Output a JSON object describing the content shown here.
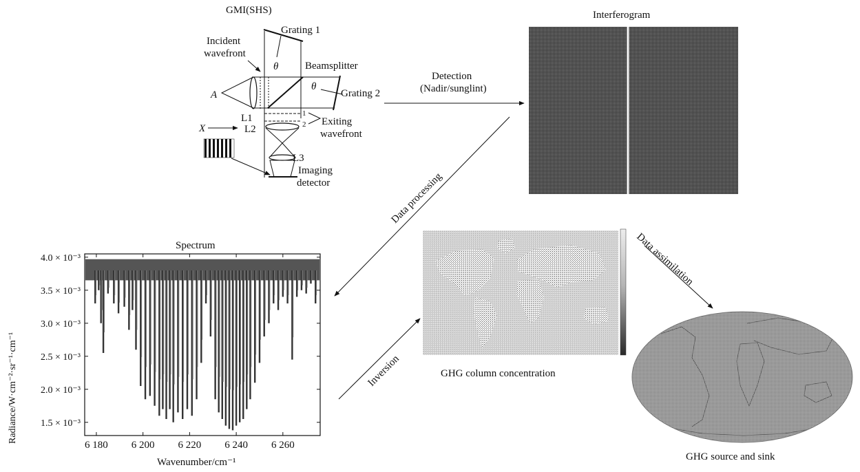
{
  "gmi": {
    "title": "GMI(SHS)",
    "labels": {
      "grating1": "Grating 1",
      "grating2": "Grating 2",
      "incident_line1": "Incident",
      "incident_line2": "wavefront",
      "beamsplitter": "Beamsplitter",
      "theta": "θ",
      "a": "A",
      "l1": "L1",
      "l2": "L2",
      "l3": "L3",
      "x": "X",
      "mark1": "1",
      "mark2": "2",
      "exiting_line1": "Exiting",
      "exiting_line2": "wavefront",
      "imaging_line1": "Imaging",
      "imaging_line2": "detector"
    }
  },
  "interferogram": {
    "title": "Interferogram"
  },
  "arrows": {
    "detection_line1": "Detection",
    "detection_line2": "(Nadir/sunglint)",
    "data_processing": "Data processing",
    "inversion": "Inversion",
    "data_assimilation": "Data assimilation"
  },
  "ghg_column": {
    "caption": "GHG column concentration"
  },
  "ghg_source": {
    "caption": "GHG source and sink"
  },
  "chart_data": {
    "type": "line",
    "title": "Spectrum",
    "xlabel": "Wavenumber/cm⁻¹",
    "ylabel": "Radiance/W·cm⁻²·sr⁻¹·cm⁻¹",
    "xlim": [
      6175,
      6276
    ],
    "ylim": [
      1.3,
      4.05
    ],
    "y_exponent_label": "×10⁻³",
    "x_ticks": [
      6180,
      6200,
      6220,
      6240,
      6260
    ],
    "x_tick_labels": [
      "6 180",
      "6 200",
      "6 220",
      "6 240",
      "6 260"
    ],
    "y_ticks": [
      1.5,
      2.0,
      2.5,
      3.0,
      3.5,
      4.0
    ],
    "y_tick_labels": [
      "1.5 × 10⁻³",
      "2.0 × 10⁻³",
      "2.5 × 10⁻³",
      "3.0 × 10⁻³",
      "3.5 × 10⁻³",
      "4.0 × 10⁻³"
    ],
    "baseline": 3.8,
    "absorption_lines": [
      {
        "x": 6179.5,
        "y": 3.3
      },
      {
        "x": 6181.0,
        "y": 3.5
      },
      {
        "x": 6182.0,
        "y": 3.0
      },
      {
        "x": 6183.0,
        "y": 2.55
      },
      {
        "x": 6185.0,
        "y": 3.45
      },
      {
        "x": 6187.5,
        "y": 3.3
      },
      {
        "x": 6189.5,
        "y": 3.15
      },
      {
        "x": 6192.0,
        "y": 3.25
      },
      {
        "x": 6194.0,
        "y": 2.9
      },
      {
        "x": 6195.5,
        "y": 3.2
      },
      {
        "x": 6197.0,
        "y": 2.6
      },
      {
        "x": 6199.0,
        "y": 2.05
      },
      {
        "x": 6201.0,
        "y": 1.85
      },
      {
        "x": 6203.0,
        "y": 1.9
      },
      {
        "x": 6205.0,
        "y": 1.75
      },
      {
        "x": 6207.0,
        "y": 1.6
      },
      {
        "x": 6208.5,
        "y": 1.7
      },
      {
        "x": 6210.0,
        "y": 1.55
      },
      {
        "x": 6211.5,
        "y": 1.7
      },
      {
        "x": 6213.0,
        "y": 1.5
      },
      {
        "x": 6215.0,
        "y": 1.65
      },
      {
        "x": 6217.0,
        "y": 1.55
      },
      {
        "x": 6219.0,
        "y": 1.7
      },
      {
        "x": 6221.0,
        "y": 1.6
      },
      {
        "x": 6223.0,
        "y": 1.85
      },
      {
        "x": 6225.0,
        "y": 2.4
      },
      {
        "x": 6227.0,
        "y": 3.3
      },
      {
        "x": 6229.0,
        "y": 2.8
      },
      {
        "x": 6231.0,
        "y": 1.85
      },
      {
        "x": 6232.5,
        "y": 1.65
      },
      {
        "x": 6234.0,
        "y": 1.55
      },
      {
        "x": 6235.5,
        "y": 1.45
      },
      {
        "x": 6237.0,
        "y": 1.4
      },
      {
        "x": 6238.5,
        "y": 1.38
      },
      {
        "x": 6240.0,
        "y": 1.45
      },
      {
        "x": 6241.5,
        "y": 1.5
      },
      {
        "x": 6243.0,
        "y": 1.55
      },
      {
        "x": 6244.5,
        "y": 1.7
      },
      {
        "x": 6246.0,
        "y": 1.85
      },
      {
        "x": 6248.0,
        "y": 2.1
      },
      {
        "x": 6250.0,
        "y": 2.4
      },
      {
        "x": 6252.0,
        "y": 2.8
      },
      {
        "x": 6254.0,
        "y": 3.0
      },
      {
        "x": 6256.0,
        "y": 3.3
      },
      {
        "x": 6258.0,
        "y": 3.2
      },
      {
        "x": 6260.0,
        "y": 3.4
      },
      {
        "x": 6262.0,
        "y": 3.3
      },
      {
        "x": 6264.0,
        "y": 2.45
      },
      {
        "x": 6266.0,
        "y": 3.4
      },
      {
        "x": 6268.0,
        "y": 3.5
      },
      {
        "x": 6270.0,
        "y": 3.45
      },
      {
        "x": 6272.0,
        "y": 3.6
      },
      {
        "x": 6274.0,
        "y": 3.3
      }
    ]
  }
}
